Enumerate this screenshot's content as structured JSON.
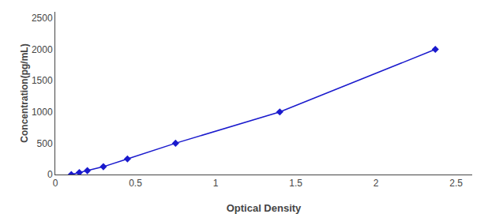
{
  "chart_data": {
    "type": "line",
    "x": [
      0.1,
      0.15,
      0.2,
      0.3,
      0.45,
      0.75,
      1.4,
      2.37
    ],
    "values": [
      0,
      31,
      62,
      125,
      250,
      500,
      1000,
      2000
    ],
    "color": "#1a1acd",
    "marker": "diamond",
    "xlabel": "Optical Density",
    "ylabel": "Concentration(pg/mL)",
    "xlim": [
      0,
      2.6
    ],
    "ylim": [
      0,
      2600
    ],
    "xticks": [
      0,
      0.5,
      1,
      1.5,
      2,
      2.5
    ],
    "yticks": [
      0,
      500,
      1000,
      1500,
      2000,
      2500
    ],
    "grid": false
  }
}
